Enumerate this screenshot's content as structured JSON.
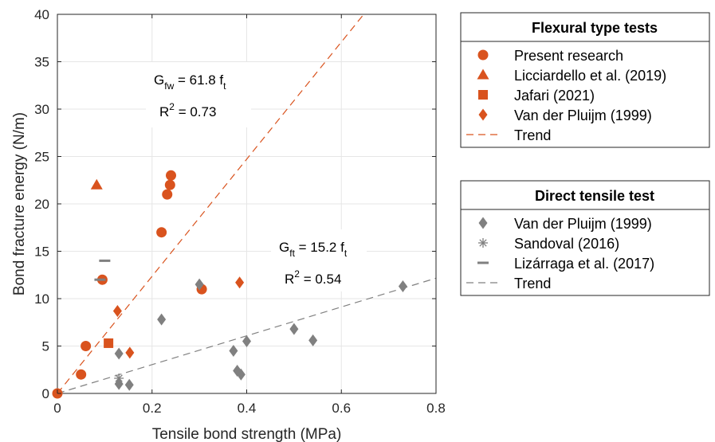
{
  "chart_data": {
    "type": "scatter",
    "xlabel": "Tensile bond strength (MPa)",
    "ylabel": "Bond fracture energy (N/m)",
    "xlim": [
      0,
      0.8
    ],
    "ylim": [
      0,
      40
    ],
    "xticks": [
      "0",
      "0.2",
      "0.4",
      "0.6",
      "0.8"
    ],
    "yticks": [
      "0",
      "5",
      "10",
      "15",
      "20",
      "25",
      "30",
      "35",
      "40"
    ],
    "grid": true,
    "colors": {
      "flexural": "#d9531e",
      "direct": "#808080",
      "axis": "#262626"
    },
    "series": [
      {
        "name": "Present research",
        "group": "flexural",
        "marker": "circle",
        "color": "#d9531e",
        "points": [
          [
            0.0,
            0.0
          ],
          [
            0.05,
            2.0
          ],
          [
            0.06,
            5.0
          ],
          [
            0.095,
            12.0
          ],
          [
            0.22,
            17.0
          ],
          [
            0.232,
            21.0
          ],
          [
            0.238,
            22.0
          ],
          [
            0.24,
            23.0
          ],
          [
            0.305,
            11.0
          ]
        ]
      },
      {
        "name": "Licciardello et al. (2019)",
        "group": "flexural",
        "marker": "triangle",
        "color": "#d9531e",
        "points": [
          [
            0.083,
            22.0
          ]
        ]
      },
      {
        "name": "Jafari (2021)",
        "group": "flexural",
        "marker": "square",
        "color": "#d9531e",
        "points": [
          [
            0.108,
            5.3
          ]
        ]
      },
      {
        "name": "Van der Pluijm (1999)",
        "group": "flexural",
        "marker": "diamond",
        "color": "#d9531e",
        "points": [
          [
            0.127,
            8.7
          ],
          [
            0.153,
            4.3
          ],
          [
            0.385,
            11.7
          ]
        ]
      },
      {
        "name": "Van der Pluijm (1999)",
        "group": "direct",
        "marker": "diamond",
        "color": "#808080",
        "points": [
          [
            0.13,
            4.2
          ],
          [
            0.13,
            1.0
          ],
          [
            0.152,
            0.9
          ],
          [
            0.22,
            7.8
          ],
          [
            0.3,
            11.5
          ],
          [
            0.372,
            4.5
          ],
          [
            0.38,
            2.4
          ],
          [
            0.388,
            2.0
          ],
          [
            0.4,
            5.5
          ],
          [
            0.5,
            6.8
          ],
          [
            0.54,
            5.6
          ],
          [
            0.73,
            11.3
          ]
        ]
      },
      {
        "name": "Sandoval (2016)",
        "group": "direct",
        "marker": "asterisk",
        "color": "#808080",
        "points": [
          [
            0.13,
            1.6
          ]
        ]
      },
      {
        "name": "Lizárraga et al. (2017)",
        "group": "direct",
        "marker": "dash",
        "color": "#808080",
        "points": [
          [
            0.1,
            14.0
          ],
          [
            0.09,
            12.0
          ]
        ]
      }
    ],
    "trends": [
      {
        "name": "Trend",
        "group": "flexural",
        "slope": 61.8,
        "color": "#d9531e"
      },
      {
        "name": "Trend",
        "group": "direct",
        "slope": 15.2,
        "color": "#808080"
      }
    ],
    "annotations": {
      "flexural_eq": {
        "lhs": "G",
        "lhs_sub": "fw",
        "mid": " = 61.8 f",
        "rhs_sub": "t",
        "r2_lhs": "R",
        "r2_sup": "2",
        "r2_rhs": " = 0.73"
      },
      "direct_eq": {
        "lhs": "G",
        "lhs_sub": "ft",
        "mid": " = 15.2 f",
        "rhs_sub": "t",
        "r2_lhs": "R",
        "r2_sup": "2",
        "r2_rhs": " = 0.54"
      }
    },
    "legends": {
      "flexural": {
        "title": "Flexural type tests",
        "entries": [
          "Present research",
          "Licciardello et al. (2019)",
          "Jafari (2021)",
          "Van der Pluijm (1999)",
          "Trend"
        ]
      },
      "direct": {
        "title": "Direct tensile test",
        "entries": [
          "Van der Pluijm (1999)",
          "Sandoval (2016)",
          "Lizárraga et al. (2017)",
          "Trend"
        ]
      }
    }
  }
}
